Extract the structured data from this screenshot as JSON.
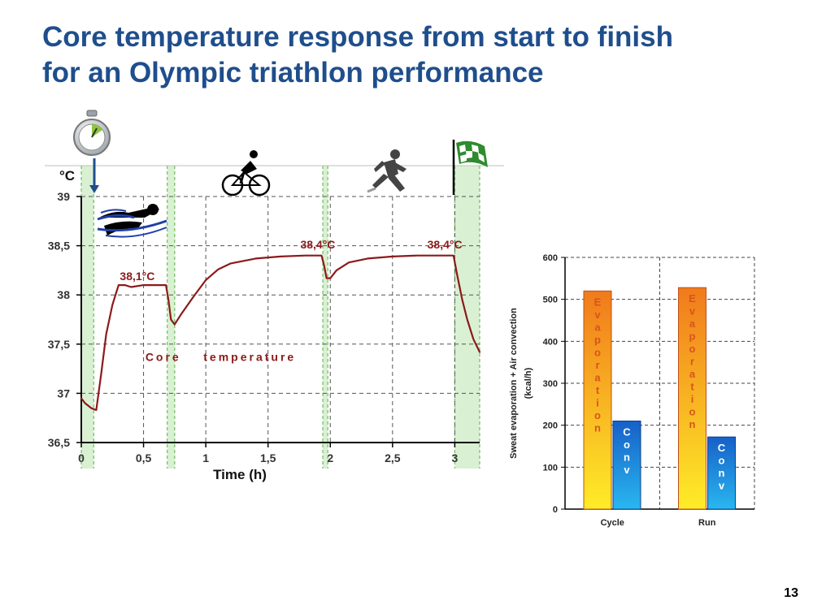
{
  "slide": {
    "title_line1": "Core temperature response from start to finish",
    "title_line2": "for an Olympic triathlon performance",
    "page_number": "13"
  },
  "chart_data": [
    {
      "type": "line",
      "ylabel": "°C",
      "xlabel": "Time (h)",
      "xlim": [
        0,
        3.2
      ],
      "ylim": [
        36.5,
        39
      ],
      "x_ticks": [
        "0",
        "0,5",
        "1",
        "1,5",
        "2",
        "2,5",
        "3"
      ],
      "y_ticks": [
        "39",
        "38,5",
        "38",
        "37,5",
        "37",
        "36,5"
      ],
      "grid": true,
      "series": [
        {
          "name": "Core temperature",
          "color": "#8b1a1a",
          "x": [
            0,
            0.03,
            0.08,
            0.12,
            0.16,
            0.2,
            0.25,
            0.3,
            0.35,
            0.4,
            0.5,
            0.6,
            0.68,
            0.7,
            0.72,
            0.75,
            0.8,
            0.9,
            1.0,
            1.1,
            1.2,
            1.4,
            1.6,
            1.8,
            1.93,
            1.95,
            1.97,
            2.0,
            2.05,
            2.15,
            2.3,
            2.5,
            2.7,
            2.9,
            2.99,
            3.02,
            3.06,
            3.1,
            3.15,
            3.2
          ],
          "y": [
            36.95,
            36.9,
            36.85,
            36.83,
            37.2,
            37.6,
            37.9,
            38.1,
            38.1,
            38.08,
            38.1,
            38.1,
            38.1,
            37.95,
            37.75,
            37.7,
            37.8,
            37.98,
            38.15,
            38.26,
            38.32,
            38.37,
            38.39,
            38.4,
            38.4,
            38.3,
            38.17,
            38.17,
            38.25,
            38.33,
            38.37,
            38.39,
            38.4,
            38.4,
            38.4,
            38.2,
            37.95,
            37.75,
            37.55,
            37.42
          ]
        }
      ],
      "transitions": [
        {
          "label": "T1",
          "x_start": 0,
          "x_end": 0.1
        },
        {
          "label": "swim-bike",
          "x_start": 0.69,
          "x_end": 0.75
        },
        {
          "label": "bike-run",
          "x_start": 1.94,
          "x_end": 1.98
        },
        {
          "label": "finish",
          "x_start": 3.0,
          "x_end": 3.2
        }
      ],
      "annotations": [
        {
          "text": "38,1°C",
          "x": 0.45,
          "y": 38.15
        },
        {
          "text": "38,4°C",
          "x": 1.9,
          "y": 38.47
        },
        {
          "text": "38,4°C",
          "x": 2.92,
          "y": 38.47
        },
        {
          "text": "Core    temperature",
          "x": 1.12,
          "y": 37.33
        }
      ],
      "icons": [
        "stopwatch-icon",
        "swimmer-icon",
        "cyclist-icon",
        "runner-icon",
        "finish-flag-icon"
      ]
    },
    {
      "type": "bar",
      "ylabel_line1": "Sweat evaporation + Air convection",
      "ylabel_line2": "(kcal/h)",
      "categories": [
        "Cycle",
        "Run"
      ],
      "ylim": [
        0,
        600
      ],
      "y_ticks": [
        "0",
        "100",
        "200",
        "300",
        "400",
        "500",
        "600"
      ],
      "grid": true,
      "series": [
        {
          "label_text": "Evaporation",
          "values": [
            520,
            528
          ],
          "color_top": "#f07a1c",
          "color_bottom": "#ffec28"
        },
        {
          "label_text": "Conv",
          "values": [
            210,
            172
          ],
          "color_top": "#1760c8",
          "color_bottom": "#29b7f0"
        }
      ]
    }
  ]
}
